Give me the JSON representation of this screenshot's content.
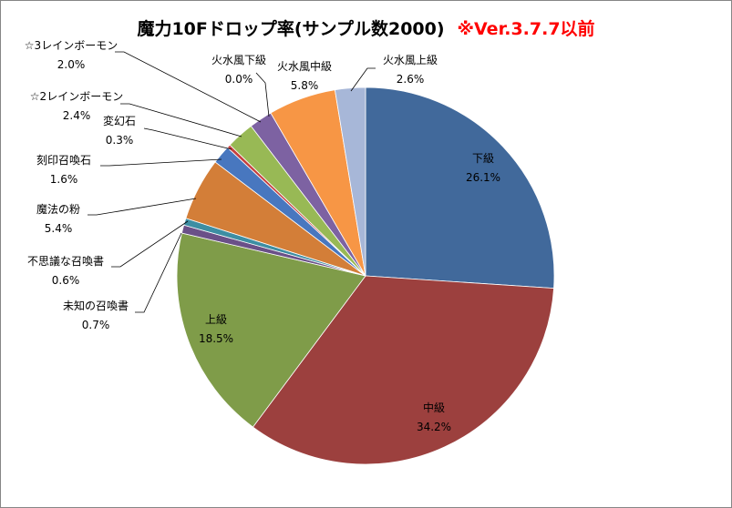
{
  "chart_data": {
    "type": "pie",
    "title": "魔力10Fドロップ率(サンプル数2000)",
    "title_note": "※Ver.3.7.7以前",
    "title_note_color": "#ff0000",
    "start_angle_deg": 0,
    "direction": "clockwise",
    "slices": [
      {
        "label": "下級",
        "percent": "26.1%",
        "value": 26.1,
        "color": "#41699b",
        "label_pos": "inside"
      },
      {
        "label": "中級",
        "percent": "34.2%",
        "value": 34.2,
        "color": "#9c403e",
        "label_pos": "inside"
      },
      {
        "label": "上級",
        "percent": "18.5%",
        "value": 18.5,
        "color": "#7f9c49",
        "label_pos": "inside"
      },
      {
        "label": "未知の召喚書",
        "percent": "0.7%",
        "value": 0.7,
        "color": "#6a5088",
        "label_pos": "outside"
      },
      {
        "label": "不思議な召喚書",
        "percent": "0.6%",
        "value": 0.6,
        "color": "#3d8ea3",
        "label_pos": "outside"
      },
      {
        "label": "魔法の粉",
        "percent": "5.4%",
        "value": 5.4,
        "color": "#d37e38",
        "label_pos": "outside"
      },
      {
        "label": "刻印召喚石",
        "percent": "1.6%",
        "value": 1.6,
        "color": "#4877bf",
        "label_pos": "outside"
      },
      {
        "label": "変幻石",
        "percent": "0.3%",
        "value": 0.3,
        "color": "#c5403f",
        "label_pos": "outside"
      },
      {
        "label": "☆2レインボーモン",
        "percent": "2.4%",
        "value": 2.4,
        "color": "#98b955",
        "label_pos": "outside"
      },
      {
        "label": "☆3レインボーモン",
        "percent": "2.0%",
        "value": 2.0,
        "color": "#7d62a2",
        "label_pos": "outside"
      },
      {
        "label": "火水風下級",
        "percent": "0.0%",
        "value": 0.0,
        "color": "#3a9bb5",
        "label_pos": "outside"
      },
      {
        "label": "火水風中級",
        "percent": "5.8%",
        "value": 5.8,
        "color": "#f79645",
        "label_pos": "outside"
      },
      {
        "label": "火水風上級",
        "percent": "2.6%",
        "value": 2.6,
        "color": "#a7b7d8",
        "label_pos": "outside"
      }
    ]
  }
}
